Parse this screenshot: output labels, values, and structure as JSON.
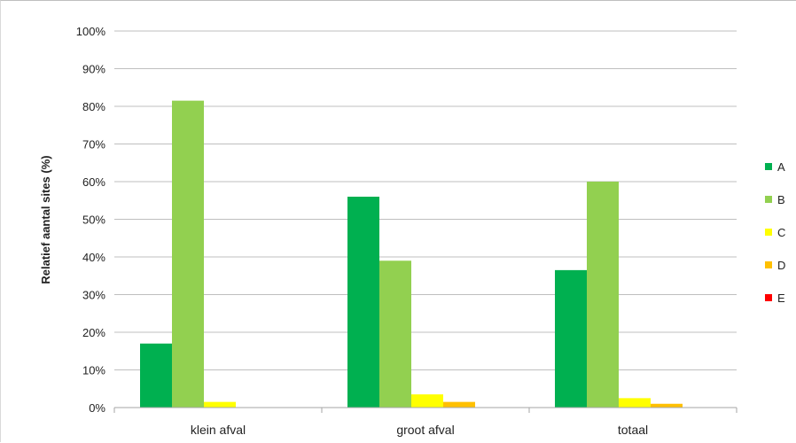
{
  "chart_data": {
    "type": "bar",
    "title": "",
    "xlabel": "",
    "ylabel": "Relatief aantal sites (%)",
    "ylim": [
      0,
      100
    ],
    "yticks": [
      "0%",
      "10%",
      "20%",
      "30%",
      "40%",
      "50%",
      "60%",
      "70%",
      "80%",
      "90%",
      "100%"
    ],
    "categories": [
      "klein afval",
      "groot afval",
      "totaal"
    ],
    "series": [
      {
        "name": "A",
        "color": "#00b050",
        "values": [
          17,
          56,
          36.5
        ]
      },
      {
        "name": "B",
        "color": "#92d050",
        "values": [
          81.5,
          39,
          60
        ]
      },
      {
        "name": "C",
        "color": "#ffff00",
        "values": [
          1.5,
          3.5,
          2.5
        ]
      },
      {
        "name": "D",
        "color": "#ffc000",
        "values": [
          0,
          1.5,
          1
        ]
      },
      {
        "name": "E",
        "color": "#ff0000",
        "values": [
          0,
          0,
          0
        ]
      }
    ],
    "grid": true,
    "legend": "right"
  }
}
